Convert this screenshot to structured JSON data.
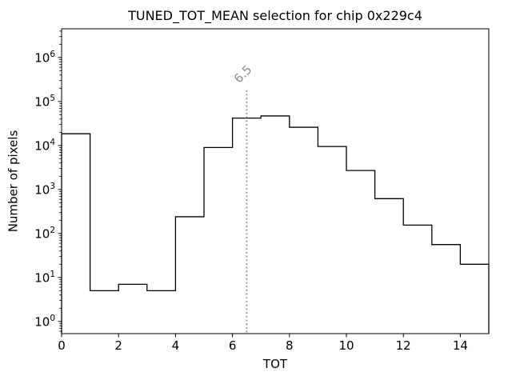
{
  "chart_data": {
    "type": "bar",
    "subtype": "step-histogram",
    "title": "TUNED_TOT_MEAN selection for chip 0x229c4",
    "xlabel": "TOT",
    "ylabel": "Number of pixels",
    "yscale": "log",
    "grid": false,
    "legend": null,
    "xlim": [
      0,
      15
    ],
    "ylim": [
      0.53,
      4500000
    ],
    "bin_edges": [
      0,
      1,
      2,
      3,
      4,
      5,
      6,
      7,
      8,
      9,
      10,
      11,
      12,
      13,
      14,
      15
    ],
    "counts": [
      18500,
      5,
      7,
      5,
      240,
      9000,
      42000,
      47000,
      26000,
      9500,
      2700,
      620,
      155,
      56,
      20
    ],
    "x_tick_values": [
      0,
      2,
      4,
      6,
      8,
      10,
      12,
      14
    ],
    "x_tick_labels": [
      "0",
      "2",
      "4",
      "6",
      "8",
      "10",
      "12",
      "14"
    ],
    "y_tick_exponents": [
      0,
      1,
      2,
      3,
      4,
      5,
      6
    ],
    "y_tick_labels": [
      "10^0",
      "10^1",
      "10^2",
      "10^3",
      "10^4",
      "10^5",
      "10^6"
    ],
    "line_color": "#000000",
    "vline": {
      "x": 6.5,
      "label": "6.5",
      "top_value": 180000,
      "color": "#8c8c8c",
      "style": "dotted"
    }
  }
}
